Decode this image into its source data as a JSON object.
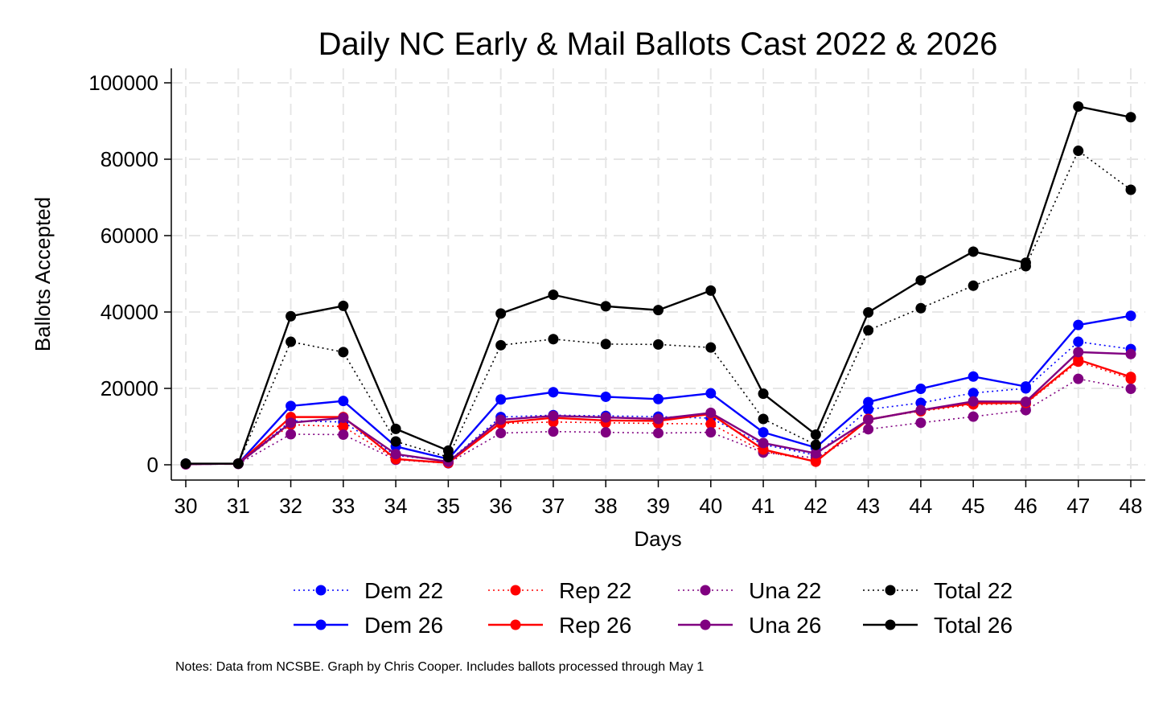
{
  "chart_data": {
    "type": "line",
    "title": "Daily NC Early & Mail Ballots Cast 2022 & 2026",
    "xlabel": "Days",
    "ylabel": "Ballots Accepted",
    "x": [
      30,
      31,
      32,
      33,
      34,
      35,
      36,
      37,
      38,
      39,
      40,
      41,
      42,
      43,
      44,
      45,
      46,
      47,
      48
    ],
    "xlim": [
      30,
      48
    ],
    "ylim": [
      0,
      100000
    ],
    "yticks": [
      0,
      20000,
      40000,
      60000,
      80000,
      100000
    ],
    "ytick_labels": [
      "0",
      "20000",
      "40000",
      "60000",
      "80000",
      "100000"
    ],
    "grid": true,
    "legend_position": "bottom",
    "series": [
      {
        "name": "Dem 22",
        "color": "#0000ff",
        "style": "dotted",
        "values": [
          300,
          300,
          11500,
          11200,
          2500,
          900,
          12500,
          13000,
          12800,
          12600,
          12200,
          5300,
          2500,
          14500,
          16200,
          18800,
          20000,
          32200,
          30300
        ]
      },
      {
        "name": "Dem 26",
        "color": "#0000ff",
        "style": "solid",
        "values": [
          200,
          300,
          15400,
          16700,
          4800,
          1500,
          17100,
          19000,
          17800,
          17200,
          18700,
          8500,
          4500,
          16400,
          19900,
          23100,
          20500,
          36600,
          39000
        ]
      },
      {
        "name": "Rep 22",
        "color": "#ff0000",
        "style": "dotted",
        "values": [
          200,
          300,
          10500,
          10000,
          1500,
          500,
          10800,
          11200,
          11000,
          10800,
          10700,
          3500,
          1000,
          12000,
          14000,
          15800,
          16000,
          27000,
          22500
        ]
      },
      {
        "name": "Rep 26",
        "color": "#ff0000",
        "style": "solid",
        "values": [
          200,
          300,
          12500,
          12500,
          1500,
          500,
          11000,
          12300,
          11600,
          11500,
          13300,
          4000,
          800,
          11800,
          14300,
          16100,
          16200,
          27500,
          23000
        ]
      },
      {
        "name": "Una 22",
        "color": "#800080",
        "style": "dotted",
        "values": [
          100,
          200,
          8000,
          7900,
          1300,
          400,
          8300,
          8700,
          8500,
          8300,
          8500,
          3200,
          1800,
          9300,
          11000,
          12600,
          14300,
          22500,
          19900
        ]
      },
      {
        "name": "Una 26",
        "color": "#800080",
        "style": "solid",
        "values": [
          200,
          300,
          11000,
          12300,
          2800,
          800,
          11800,
          12800,
          12400,
          12000,
          13600,
          5700,
          3000,
          11800,
          14300,
          16600,
          16500,
          29500,
          29000
        ]
      },
      {
        "name": "Total 22",
        "color": "#000000",
        "style": "dotted",
        "values": [
          300,
          300,
          32200,
          29500,
          6100,
          2000,
          31300,
          32900,
          31600,
          31500,
          30700,
          12000,
          5200,
          35200,
          41000,
          46900,
          52000,
          82200,
          72000
        ]
      },
      {
        "name": "Total 26",
        "color": "#000000",
        "style": "solid",
        "values": [
          300,
          300,
          38900,
          41600,
          9400,
          3700,
          39600,
          44500,
          41500,
          40500,
          45600,
          18600,
          7900,
          39900,
          48300,
          55800,
          52900,
          93800,
          91000
        ]
      }
    ],
    "legend": [
      {
        "label": "Dem 22",
        "color": "#0000ff",
        "style": "dotted"
      },
      {
        "label": "Rep 22",
        "color": "#ff0000",
        "style": "dotted"
      },
      {
        "label": "Una 22",
        "color": "#800080",
        "style": "dotted"
      },
      {
        "label": "Total 22",
        "color": "#000000",
        "style": "dotted"
      },
      {
        "label": "Dem 26",
        "color": "#0000ff",
        "style": "solid"
      },
      {
        "label": "Rep 26",
        "color": "#ff0000",
        "style": "solid"
      },
      {
        "label": "Una 26",
        "color": "#800080",
        "style": "solid"
      },
      {
        "label": "Total 26",
        "color": "#000000",
        "style": "solid"
      }
    ],
    "note": "Notes: Data from NCSBE. Graph by Chris Cooper. Includes ballots processed through May 1"
  }
}
